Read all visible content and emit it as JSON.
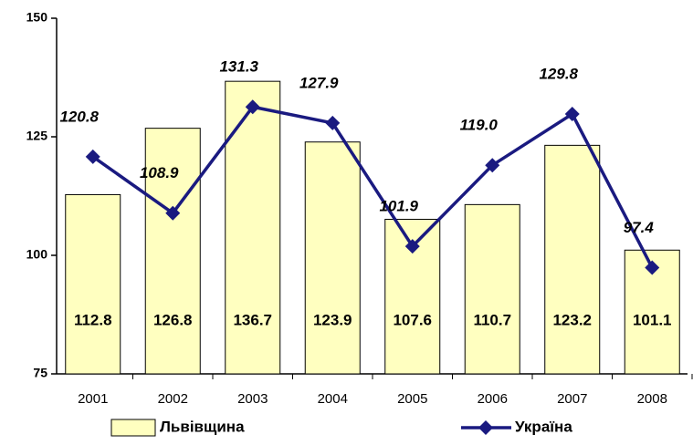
{
  "chart_data": {
    "type": "bar",
    "categories": [
      "2001",
      "2002",
      "2003",
      "2004",
      "2005",
      "2006",
      "2007",
      "2008"
    ],
    "series": [
      {
        "name": "Львівщина",
        "type": "bar",
        "color": "#ffffc0",
        "values": [
          112.8,
          126.8,
          136.7,
          123.9,
          107.6,
          110.7,
          123.2,
          101.1
        ]
      },
      {
        "name": "Україна",
        "type": "line",
        "color": "#1a1a80",
        "values": [
          120.8,
          108.9,
          131.3,
          127.9,
          101.9,
          119.0,
          129.8,
          97.4
        ],
        "value_labels": [
          "120.8",
          "108.9",
          "131.3",
          "127.9",
          "101.9",
          "119.0",
          "129.8",
          "97.4"
        ]
      }
    ],
    "ylim": [
      75,
      150
    ],
    "yticks": [
      75,
      100,
      125,
      150
    ],
    "grid": false,
    "legend": "bottom"
  }
}
